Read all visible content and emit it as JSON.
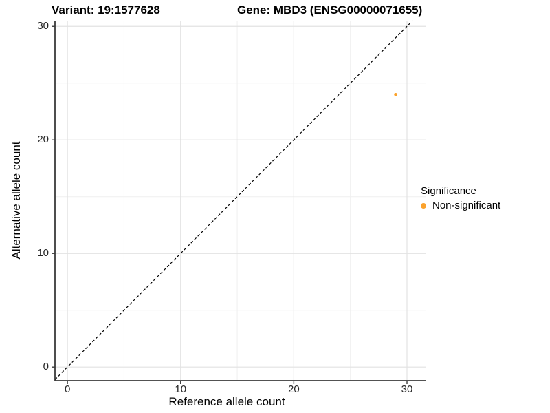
{
  "titles": {
    "variant": "Variant: 19:1577628",
    "gene": "Gene: MBD3 (ENSG00000071655)"
  },
  "axes": {
    "x_label": "Reference allele count",
    "y_label": "Alternative allele count"
  },
  "legend": {
    "title": "Significance",
    "items": [
      {
        "label": "Non-significant",
        "color": "#FBA22C"
      }
    ]
  },
  "colors": {
    "point_orange": "#FBA22C",
    "grid_major": "#e2e2e2",
    "grid_minor": "#efefef",
    "axis_line": "#3a3a3a",
    "reference_line": "#000000",
    "background": "#ffffff"
  },
  "chart_data": {
    "type": "scatter",
    "title": "Variant: 19:1577628    Gene: MBD3 (ENSG00000071655)",
    "xlabel": "Reference allele count",
    "ylabel": "Alternative allele count",
    "xlim": [
      -1.1,
      31.7
    ],
    "ylim": [
      -1.2,
      30.5
    ],
    "x_ticks": [
      0,
      10,
      20,
      30
    ],
    "y_ticks": [
      0,
      10,
      20,
      30
    ],
    "x_minor_ticks": [
      5,
      15,
      25
    ],
    "y_minor_ticks": [
      5,
      15,
      25
    ],
    "grid": true,
    "legend_position": "right",
    "series": [
      {
        "name": "Non-significant",
        "color": "#FBA22C",
        "points": [
          [
            29,
            24
          ]
        ]
      }
    ],
    "reference_line": {
      "type": "identity",
      "slope": 1,
      "intercept": 0,
      "style": "dashed",
      "color": "#000000"
    }
  }
}
